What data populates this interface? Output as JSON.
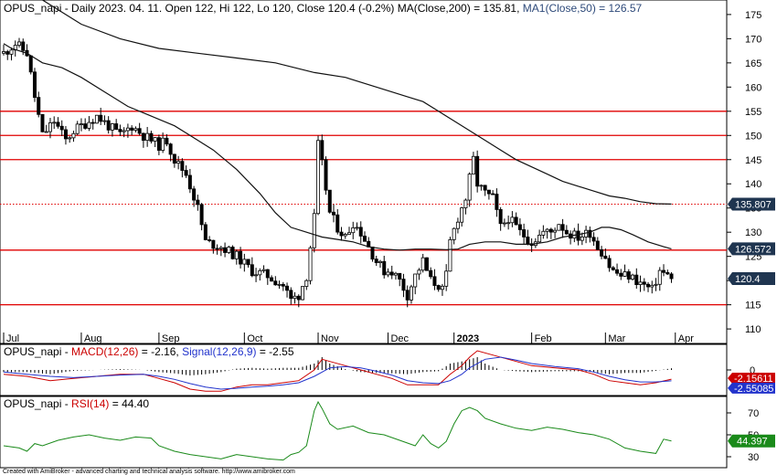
{
  "chart_data": [
    {
      "type": "candlestick",
      "title_parts": [
        {
          "text": "OPUS_napi - Daily 2023. 04. 11. Open 122, Hi 122, Lo 120, Close 120.4 (-0.2%) ",
          "color": "#000000"
        },
        {
          "text": "MA(Close,200) = 135.81, ",
          "color": "#000000"
        },
        {
          "text": "MA1(Close,50) = 126.57",
          "color": "#2e4a7a"
        }
      ],
      "ylim": [
        107,
        178
      ],
      "y_ticks": [
        110,
        115,
        120,
        125,
        130,
        135,
        140,
        145,
        150,
        155,
        160,
        165,
        170,
        175
      ],
      "x_labels": [
        {
          "label": "Jul",
          "day": 0
        },
        {
          "label": "Aug",
          "day": 20
        },
        {
          "label": "Sep",
          "day": 40
        },
        {
          "label": "Oct",
          "day": 62
        },
        {
          "label": "Nov",
          "day": 81
        },
        {
          "label": "Dec",
          "day": 99
        },
        {
          "label": "2023",
          "day": 116
        },
        {
          "label": "Feb",
          "day": 136
        },
        {
          "label": "Mar",
          "day": 155
        },
        {
          "label": "Apr",
          "day": 173
        }
      ],
      "horizontal_lines": [
        {
          "value": 155,
          "style": "solid"
        },
        {
          "value": 150,
          "style": "solid"
        },
        {
          "value": 145,
          "style": "solid"
        },
        {
          "value": 135.807,
          "style": "dotted"
        },
        {
          "value": 126.3,
          "style": "solid"
        },
        {
          "value": 115,
          "style": "solid"
        }
      ],
      "last_value_badges": [
        {
          "label": "135.807",
          "value": 135.807
        },
        {
          "label": "126.572",
          "value": 126.572
        },
        {
          "label": "120.4",
          "value": 120.4
        }
      ],
      "price_anchors": [
        [
          0,
          167
        ],
        [
          3,
          169
        ],
        [
          6,
          167
        ],
        [
          8,
          158
        ],
        [
          10,
          150
        ],
        [
          13,
          153
        ],
        [
          16,
          149
        ],
        [
          18,
          151
        ],
        [
          20,
          152
        ],
        [
          24,
          154
        ],
        [
          27,
          152
        ],
        [
          30,
          150
        ],
        [
          33,
          152
        ],
        [
          36,
          150
        ],
        [
          38,
          149
        ],
        [
          40,
          148
        ],
        [
          42,
          149
        ],
        [
          44,
          145
        ],
        [
          47,
          142
        ],
        [
          50,
          135
        ],
        [
          52,
          128
        ],
        [
          56,
          127
        ],
        [
          60,
          125
        ],
        [
          64,
          122
        ],
        [
          68,
          121
        ],
        [
          72,
          119
        ],
        [
          74,
          116
        ],
        [
          76,
          117
        ],
        [
          78,
          121
        ],
        [
          80,
          133
        ],
        [
          81,
          148
        ],
        [
          82,
          144
        ],
        [
          84,
          134
        ],
        [
          86,
          131
        ],
        [
          88,
          129
        ],
        [
          90,
          132
        ],
        [
          92,
          130
        ],
        [
          94,
          127
        ],
        [
          96,
          124
        ],
        [
          98,
          122
        ],
        [
          100,
          122
        ],
        [
          102,
          120
        ],
        [
          104,
          117
        ],
        [
          106,
          121
        ],
        [
          108,
          124
        ],
        [
          110,
          120
        ],
        [
          112,
          119
        ],
        [
          113,
          118
        ],
        [
          114,
          121
        ],
        [
          115,
          128
        ],
        [
          117,
          133
        ],
        [
          119,
          137
        ],
        [
          120,
          141
        ],
        [
          121,
          145
        ],
        [
          122,
          140
        ],
        [
          124,
          138
        ],
        [
          126,
          137
        ],
        [
          128,
          131
        ],
        [
          130,
          133
        ],
        [
          133,
          130
        ],
        [
          136,
          128
        ],
        [
          139,
          130
        ],
        [
          141,
          130
        ],
        [
          143,
          132
        ],
        [
          145,
          130
        ],
        [
          148,
          129
        ],
        [
          151,
          130
        ],
        [
          153,
          127
        ],
        [
          155,
          125
        ],
        [
          156,
          123
        ],
        [
          157,
          122
        ],
        [
          159,
          121
        ],
        [
          161,
          121
        ],
        [
          163,
          120
        ],
        [
          165,
          119
        ],
        [
          167,
          118
        ],
        [
          168,
          120
        ],
        [
          169,
          122
        ],
        [
          171,
          121
        ],
        [
          172,
          120.4
        ]
      ],
      "ma50_anchors": [
        [
          0,
          169
        ],
        [
          2,
          168
        ],
        [
          6,
          167
        ],
        [
          10,
          165
        ],
        [
          15,
          164
        ],
        [
          20,
          162
        ],
        [
          26,
          159
        ],
        [
          32,
          156
        ],
        [
          38,
          154
        ],
        [
          44,
          152
        ],
        [
          48,
          150
        ],
        [
          54,
          147
        ],
        [
          60,
          143
        ],
        [
          66,
          138
        ],
        [
          70,
          134
        ],
        [
          74,
          131
        ],
        [
          78,
          130
        ],
        [
          82,
          129
        ],
        [
          86,
          128.5
        ],
        [
          90,
          128
        ],
        [
          94,
          127
        ],
        [
          98,
          126.5
        ],
        [
          102,
          126.3
        ],
        [
          106,
          126.5
        ],
        [
          110,
          126.5
        ],
        [
          114,
          126.4
        ],
        [
          117,
          126.5
        ],
        [
          120,
          127.5
        ],
        [
          124,
          128
        ],
        [
          128,
          128
        ],
        [
          132,
          127.5
        ],
        [
          136,
          127.5
        ],
        [
          140,
          128
        ],
        [
          144,
          129
        ],
        [
          148,
          129.5
        ],
        [
          151,
          130
        ],
        [
          154,
          131
        ],
        [
          156,
          131
        ],
        [
          159,
          130.5
        ],
        [
          162,
          129.5
        ],
        [
          166,
          128
        ],
        [
          170,
          127
        ],
        [
          172,
          126.57
        ]
      ],
      "ma200_anchors": [
        [
          10,
          178
        ],
        [
          14,
          176
        ],
        [
          20,
          173
        ],
        [
          30,
          170
        ],
        [
          40,
          168
        ],
        [
          50,
          167
        ],
        [
          60,
          166
        ],
        [
          70,
          165
        ],
        [
          80,
          163
        ],
        [
          88,
          162
        ],
        [
          96,
          160
        ],
        [
          104,
          158
        ],
        [
          108,
          157
        ],
        [
          112,
          155
        ],
        [
          116,
          153
        ],
        [
          120,
          151
        ],
        [
          124,
          149
        ],
        [
          128,
          147
        ],
        [
          132,
          145
        ],
        [
          136,
          143.5
        ],
        [
          140,
          142
        ],
        [
          144,
          140.5
        ],
        [
          148,
          139.5
        ],
        [
          152,
          138.5
        ],
        [
          156,
          137.5
        ],
        [
          160,
          137
        ],
        [
          164,
          136.3
        ],
        [
          168,
          135.9
        ],
        [
          172,
          135.81
        ]
      ]
    },
    {
      "type": "line",
      "title_parts": [
        {
          "text": "OPUS_napi - ",
          "color": "#000000"
        },
        {
          "text": "MACD(12,26)",
          "color": "#cc0000"
        },
        {
          "text": " = -2.16, ",
          "color": "#000000"
        },
        {
          "text": "Signal(12,26,9)",
          "color": "#2233cc"
        },
        {
          "text": " = -2.55",
          "color": "#000000"
        }
      ],
      "ylim": [
        -6,
        6
      ],
      "y_ticks": [
        0
      ],
      "last_value_badges": [
        {
          "label": "-2.15611",
          "value": -2.15611,
          "color": "#cc0000"
        },
        {
          "label": "-2.55085",
          "value": -2.55085,
          "color": "#2233cc"
        }
      ],
      "macd_anchors": [
        [
          0,
          -1
        ],
        [
          6,
          -1.5
        ],
        [
          12,
          -2.5
        ],
        [
          18,
          -2
        ],
        [
          24,
          -1.5
        ],
        [
          30,
          -1
        ],
        [
          36,
          -1
        ],
        [
          40,
          -2
        ],
        [
          44,
          -3
        ],
        [
          48,
          -4.5
        ],
        [
          52,
          -5
        ],
        [
          56,
          -5
        ],
        [
          60,
          -4
        ],
        [
          64,
          -3.5
        ],
        [
          68,
          -3.5
        ],
        [
          72,
          -3
        ],
        [
          76,
          -2.5
        ],
        [
          80,
          0
        ],
        [
          82,
          2.5
        ],
        [
          84,
          2
        ],
        [
          88,
          1
        ],
        [
          92,
          0
        ],
        [
          96,
          -1
        ],
        [
          100,
          -2
        ],
        [
          104,
          -3.5
        ],
        [
          108,
          -3.5
        ],
        [
          112,
          -3.5
        ],
        [
          115,
          -1
        ],
        [
          118,
          1
        ],
        [
          120,
          3
        ],
        [
          122,
          4.5
        ],
        [
          126,
          3.5
        ],
        [
          130,
          2.5
        ],
        [
          136,
          1
        ],
        [
          142,
          0.5
        ],
        [
          148,
          0
        ],
        [
          152,
          -1
        ],
        [
          156,
          -2.5
        ],
        [
          160,
          -3
        ],
        [
          164,
          -3.5
        ],
        [
          168,
          -3
        ],
        [
          172,
          -2.16
        ]
      ],
      "signal_anchors": [
        [
          0,
          -0.5
        ],
        [
          6,
          -1
        ],
        [
          12,
          -1.5
        ],
        [
          18,
          -1.8
        ],
        [
          24,
          -1.5
        ],
        [
          30,
          -1.2
        ],
        [
          36,
          -1
        ],
        [
          40,
          -1.5
        ],
        [
          44,
          -2.2
        ],
        [
          48,
          -3.2
        ],
        [
          52,
          -4
        ],
        [
          56,
          -4.5
        ],
        [
          60,
          -4.3
        ],
        [
          64,
          -4
        ],
        [
          68,
          -3.8
        ],
        [
          72,
          -3.5
        ],
        [
          76,
          -3
        ],
        [
          80,
          -1.5
        ],
        [
          84,
          0.5
        ],
        [
          88,
          0.8
        ],
        [
          92,
          0.5
        ],
        [
          96,
          -0.3
        ],
        [
          100,
          -1.2
        ],
        [
          104,
          -2.5
        ],
        [
          108,
          -3
        ],
        [
          112,
          -3.2
        ],
        [
          115,
          -2.5
        ],
        [
          118,
          -1
        ],
        [
          120,
          0.5
        ],
        [
          124,
          2.5
        ],
        [
          128,
          3
        ],
        [
          132,
          2.3
        ],
        [
          136,
          1.5
        ],
        [
          142,
          0.8
        ],
        [
          148,
          0.3
        ],
        [
          152,
          -0.5
        ],
        [
          156,
          -1.5
        ],
        [
          160,
          -2.3
        ],
        [
          164,
          -2.8
        ],
        [
          168,
          -2.8
        ],
        [
          172,
          -2.55
        ]
      ]
    },
    {
      "type": "line",
      "title_parts": [
        {
          "text": "OPUS_napi - ",
          "color": "#000000"
        },
        {
          "text": "RSI(14)",
          "color": "#cc0000"
        },
        {
          "text": " = 44.40",
          "color": "#000000"
        }
      ],
      "ylim": [
        20,
        85
      ],
      "y_ticks": [
        30,
        50,
        70
      ],
      "last_value_badges": [
        {
          "label": "44.397",
          "value": 44.397,
          "color": "#1a8a1a"
        }
      ],
      "rsi_anchors": [
        [
          0,
          40
        ],
        [
          4,
          38
        ],
        [
          6,
          35
        ],
        [
          8,
          42
        ],
        [
          10,
          40
        ],
        [
          14,
          45
        ],
        [
          18,
          48
        ],
        [
          22,
          50
        ],
        [
          26,
          47
        ],
        [
          30,
          45
        ],
        [
          34,
          48
        ],
        [
          38,
          47
        ],
        [
          40,
          40
        ],
        [
          44,
          35
        ],
        [
          48,
          32
        ],
        [
          52,
          30
        ],
        [
          56,
          28
        ],
        [
          60,
          32
        ],
        [
          64,
          30
        ],
        [
          68,
          28
        ],
        [
          72,
          27
        ],
        [
          74,
          32
        ],
        [
          76,
          34
        ],
        [
          78,
          40
        ],
        [
          80,
          72
        ],
        [
          81,
          80
        ],
        [
          82,
          74
        ],
        [
          84,
          60
        ],
        [
          86,
          55
        ],
        [
          90,
          58
        ],
        [
          94,
          52
        ],
        [
          98,
          50
        ],
        [
          102,
          45
        ],
        [
          106,
          40
        ],
        [
          108,
          50
        ],
        [
          110,
          42
        ],
        [
          112,
          38
        ],
        [
          114,
          44
        ],
        [
          116,
          60
        ],
        [
          118,
          72
        ],
        [
          120,
          75
        ],
        [
          122,
          72
        ],
        [
          124,
          65
        ],
        [
          128,
          60
        ],
        [
          132,
          56
        ],
        [
          136,
          54
        ],
        [
          140,
          57
        ],
        [
          144,
          55
        ],
        [
          148,
          52
        ],
        [
          152,
          50
        ],
        [
          156,
          46
        ],
        [
          160,
          38
        ],
        [
          164,
          35
        ],
        [
          168,
          33
        ],
        [
          170,
          46
        ],
        [
          172,
          44.4
        ]
      ]
    }
  ],
  "footer": {
    "credit": "Created with AmiBroker - advanced charting and technical analysis software. http://www.amibroker.com"
  }
}
